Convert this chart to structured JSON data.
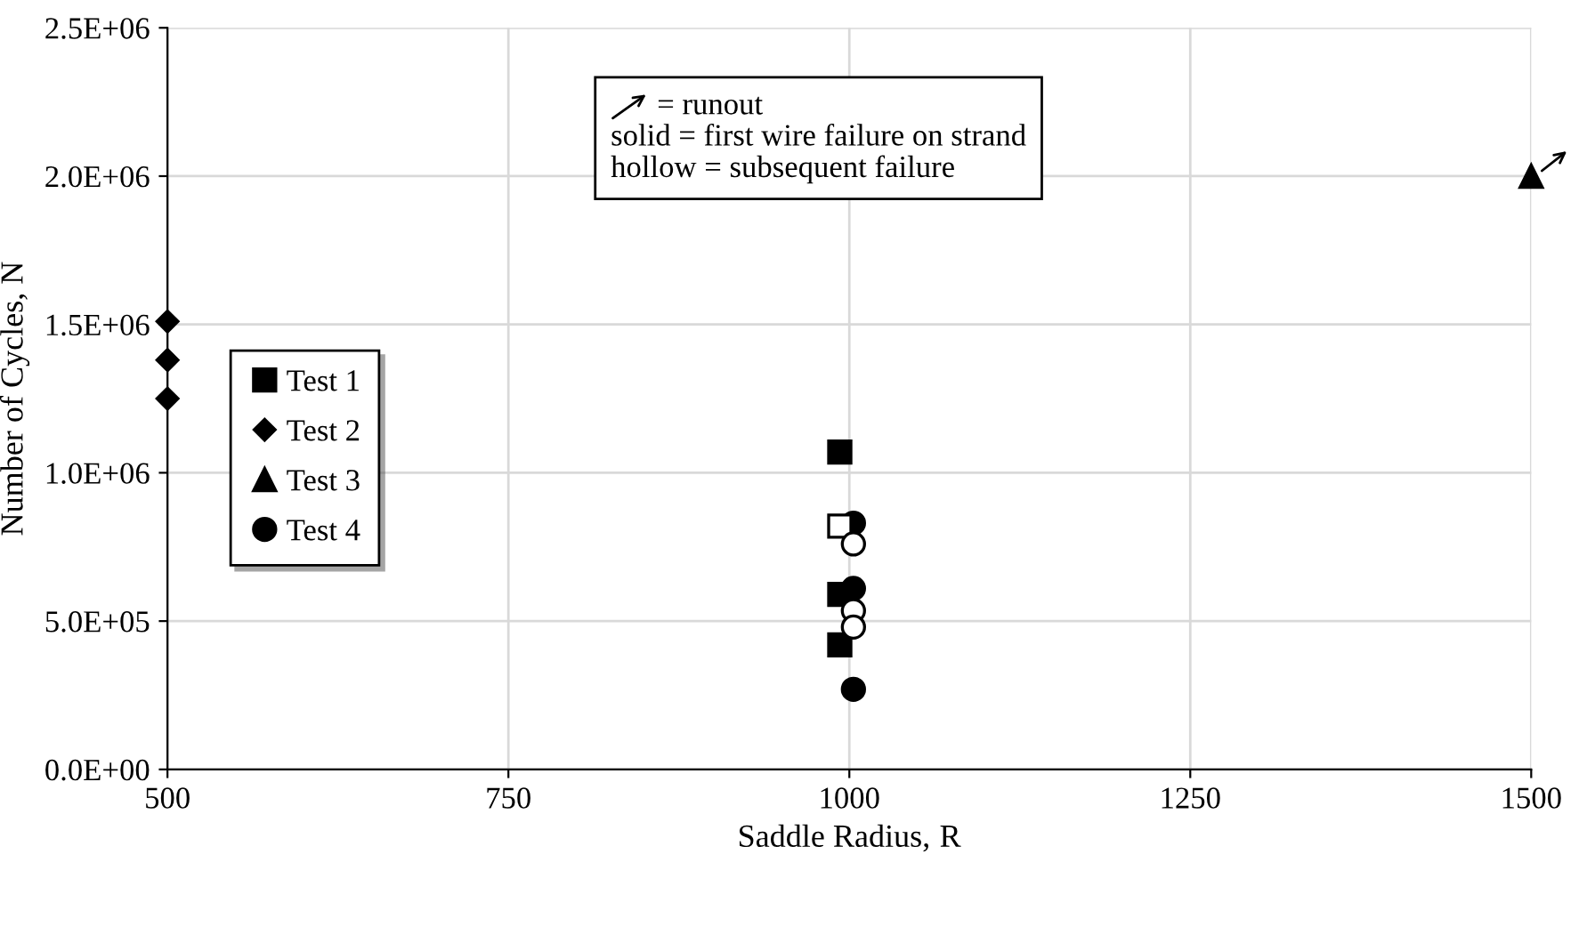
{
  "chart_data": {
    "type": "scatter",
    "xlabel": "Saddle Radius, $_{}$R",
    "ylabel": "Number of Cycles, N",
    "xlim": [
      500,
      1500
    ],
    "xticks": [
      500,
      750,
      1000,
      1250,
      1500
    ],
    "ylim": [
      0,
      2500000
    ],
    "yticks": [
      {
        "value": 0,
        "label": "0.0E+00"
      },
      {
        "value": 500000,
        "label": "5.0E+05"
      },
      {
        "value": 1000000,
        "label": "1.0E+06"
      },
      {
        "value": 1500000,
        "label": "1.5E+06"
      },
      {
        "value": 2000000,
        "label": "2.0E+06"
      },
      {
        "value": 2500000,
        "label": "2.5E+06"
      }
    ],
    "grid": true,
    "legend": "left",
    "annotations": [
      "= runout\nsolid = first wire failure on strand\nhollow = subsequent failure"
    ],
    "series": [
      {
        "name": "Test 1",
        "color": "#000000",
        "marker": "square",
        "x": [
          993,
          993,
          993
        ],
        "values": [
          1070000,
          590000,
          420000
        ]
      },
      {
        "name": "Test 2",
        "color": "#000000",
        "marker": "diamond",
        "x": [
          500,
          500,
          500
        ],
        "values": [
          1510000,
          1380000,
          1250000
        ]
      },
      {
        "name": "Test 3",
        "color": "#000000",
        "marker": "triangle",
        "x": [
          1500
        ],
        "values": [
          2000000
        ]
      },
      {
        "name": "Test 4",
        "color": "#000000",
        "marker": "circle",
        "x": [
          1003,
          1003,
          1003
        ],
        "values": [
          830000,
          610000,
          270000
        ]
      },
      {
        "color": "#ffffff",
        "marker": "square",
        "x": [
          993
        ],
        "values": [
          820000
        ]
      },
      {
        "color": "#ffffff",
        "marker": "circle",
        "x": [
          1003,
          1003,
          1003
        ],
        "values": [
          760000,
          535000,
          480000
        ]
      }
    ]
  }
}
